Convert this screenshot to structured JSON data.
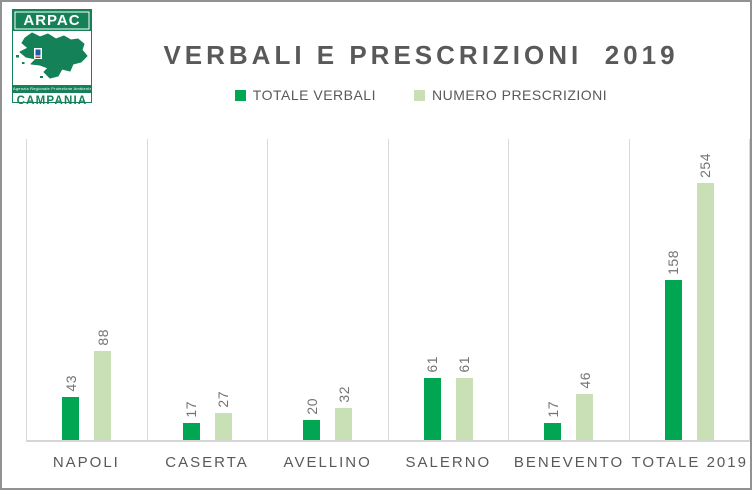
{
  "logo": {
    "agency": "ARPAC",
    "strip_text": "Agenzia Regionale Protezione Ambientale",
    "region": "CAMPANIA"
  },
  "title": "VERBALI E PRESCRIZIONI  2019",
  "chart_data": {
    "type": "bar",
    "title": "VERBALI E PRESCRIZIONI  2019",
    "categories": [
      "NAPOLI",
      "CASERTA",
      "AVELLINO",
      "SALERNO",
      "BENEVENTO",
      "TOTALE 2019"
    ],
    "series": [
      {
        "name": "TOTALE VERBALI",
        "color": "#00a651",
        "values": [
          43,
          17,
          20,
          61,
          17,
          158
        ]
      },
      {
        "name": "NUMERO PRESCRIZIONI",
        "color": "#c9dfb5",
        "values": [
          88,
          27,
          32,
          61,
          46,
          254
        ]
      }
    ],
    "xlabel": "",
    "ylabel": "",
    "ylim": [
      0,
      300
    ],
    "y_axis_visible": false,
    "grid": "vertical-category-separators",
    "data_labels": "rotated-vertical-above-bars",
    "legend_position": "top"
  },
  "colors": {
    "title_text": "#595959",
    "category_text": "#595959",
    "data_label_text": "#737373",
    "separator_line": "#d9d9d9",
    "axis_line": "#d6d6d6",
    "logo_green": "#158159",
    "frame_border": "#919191"
  }
}
